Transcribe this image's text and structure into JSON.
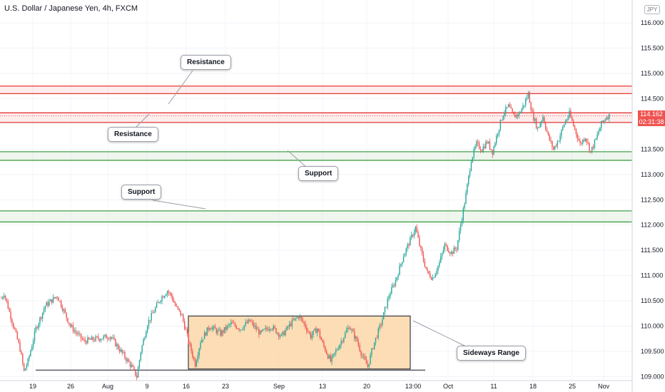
{
  "header": {
    "title": "U.S. Dollar / Japanese Yen, 4h, FXCM",
    "currency_badge": "JPY"
  },
  "price_tag": {
    "price": "114.162",
    "countdown": "02:31:38",
    "color": "#ef5350"
  },
  "annotations": {
    "resistance_upper": "Resistance",
    "resistance_lower": "Resistance",
    "support_upper": "Support",
    "support_lower": "Support",
    "sideways_range": "Sideways Range"
  },
  "colors": {
    "up": "#26a69a",
    "down": "#ef5350",
    "resistance": "#e53935",
    "support": "#43a047",
    "range_fill": "#fbd7a8",
    "range_border": "#131722"
  },
  "chart_data": {
    "type": "candlestick",
    "title": "U.S. Dollar / Japanese Yen, 4h, FXCM",
    "ylim": [
      108.9,
      116.5
    ],
    "y_ticks": [
      "109.000",
      "109.500",
      "110.000",
      "110.500",
      "111.000",
      "111.500",
      "112.000",
      "112.500",
      "113.000",
      "113.500",
      "114.000",
      "114.500",
      "115.000",
      "115.500",
      "116.000"
    ],
    "x_ticks": [
      "19",
      "26",
      "Aug",
      "9",
      "16",
      "23",
      "Sep",
      "13",
      "20",
      "13:00",
      "Oct",
      "11",
      "18",
      "25",
      "Nov"
    ],
    "zones": [
      {
        "label": "Resistance",
        "from": 114.6,
        "to": 114.75
      },
      {
        "label": "Resistance",
        "from": 114.03,
        "to": 114.22
      },
      {
        "label": "Support",
        "from": 113.28,
        "to": 113.45
      },
      {
        "label": "Support",
        "from": 112.06,
        "to": 112.28
      }
    ],
    "range_box": {
      "label": "Sideways Range",
      "from": 109.15,
      "to": 110.2,
      "start": "Aug 16",
      "end": "Sep 23"
    },
    "baseline": 109.13,
    "last_price": 114.162,
    "path_keys": [
      [
        0,
        110.55
      ],
      [
        2,
        110.65
      ],
      [
        8,
        110.1
      ],
      [
        14,
        109.55
      ],
      [
        17,
        109.1
      ],
      [
        20,
        109.3
      ],
      [
        26,
        109.95
      ],
      [
        33,
        110.4
      ],
      [
        42,
        110.6
      ],
      [
        52,
        110.0
      ],
      [
        62,
        109.7
      ],
      [
        72,
        109.75
      ],
      [
        82,
        109.8
      ],
      [
        90,
        109.5
      ],
      [
        98,
        109.2
      ],
      [
        102,
        109.0
      ],
      [
        105,
        109.5
      ],
      [
        110,
        110.05
      ],
      [
        115,
        110.3
      ],
      [
        120,
        110.55
      ],
      [
        125,
        110.7
      ],
      [
        128,
        110.6
      ],
      [
        131,
        110.4
      ],
      [
        136,
        110.2
      ],
      [
        142,
        109.6
      ],
      [
        146,
        109.25
      ],
      [
        150,
        109.7
      ],
      [
        157,
        110.0
      ],
      [
        165,
        109.85
      ],
      [
        173,
        110.05
      ],
      [
        180,
        109.95
      ],
      [
        187,
        110.1
      ],
      [
        195,
        109.85
      ],
      [
        203,
        110.0
      ],
      [
        211,
        109.8
      ],
      [
        218,
        110.05
      ],
      [
        224,
        110.2
      ],
      [
        228,
        110.05
      ],
      [
        233,
        109.8
      ],
      [
        238,
        109.95
      ],
      [
        242,
        109.65
      ],
      [
        248,
        109.3
      ],
      [
        254,
        109.6
      ],
      [
        262,
        110.0
      ],
      [
        268,
        109.7
      ],
      [
        272,
        109.4
      ],
      [
        276,
        109.2
      ],
      [
        280,
        109.6
      ],
      [
        286,
        110.05
      ],
      [
        292,
        110.6
      ],
      [
        297,
        110.9
      ],
      [
        303,
        111.4
      ],
      [
        308,
        111.7
      ],
      [
        312,
        111.95
      ],
      [
        315,
        111.6
      ],
      [
        318,
        111.3
      ],
      [
        321,
        111.05
      ],
      [
        325,
        110.95
      ],
      [
        330,
        111.25
      ],
      [
        334,
        111.6
      ],
      [
        339,
        111.45
      ],
      [
        343,
        111.55
      ],
      [
        346,
        112.0
      ],
      [
        350,
        112.6
      ],
      [
        354,
        113.3
      ],
      [
        358,
        113.6
      ],
      [
        362,
        113.5
      ],
      [
        366,
        113.65
      ],
      [
        370,
        113.45
      ],
      [
        374,
        113.85
      ],
      [
        378,
        114.2
      ],
      [
        382,
        114.35
      ],
      [
        386,
        114.15
      ],
      [
        390,
        114.2
      ],
      [
        394,
        114.4
      ],
      [
        397,
        114.6
      ],
      [
        400,
        114.2
      ],
      [
        404,
        113.9
      ],
      [
        408,
        114.15
      ],
      [
        412,
        113.75
      ],
      [
        416,
        113.5
      ],
      [
        420,
        113.7
      ],
      [
        424,
        114.0
      ],
      [
        428,
        114.2
      ],
      [
        432,
        113.9
      ],
      [
        436,
        113.6
      ],
      [
        440,
        113.75
      ],
      [
        444,
        113.45
      ],
      [
        448,
        113.7
      ],
      [
        452,
        114.0
      ],
      [
        456,
        114.15
      ],
      [
        458,
        114.162
      ]
    ]
  }
}
